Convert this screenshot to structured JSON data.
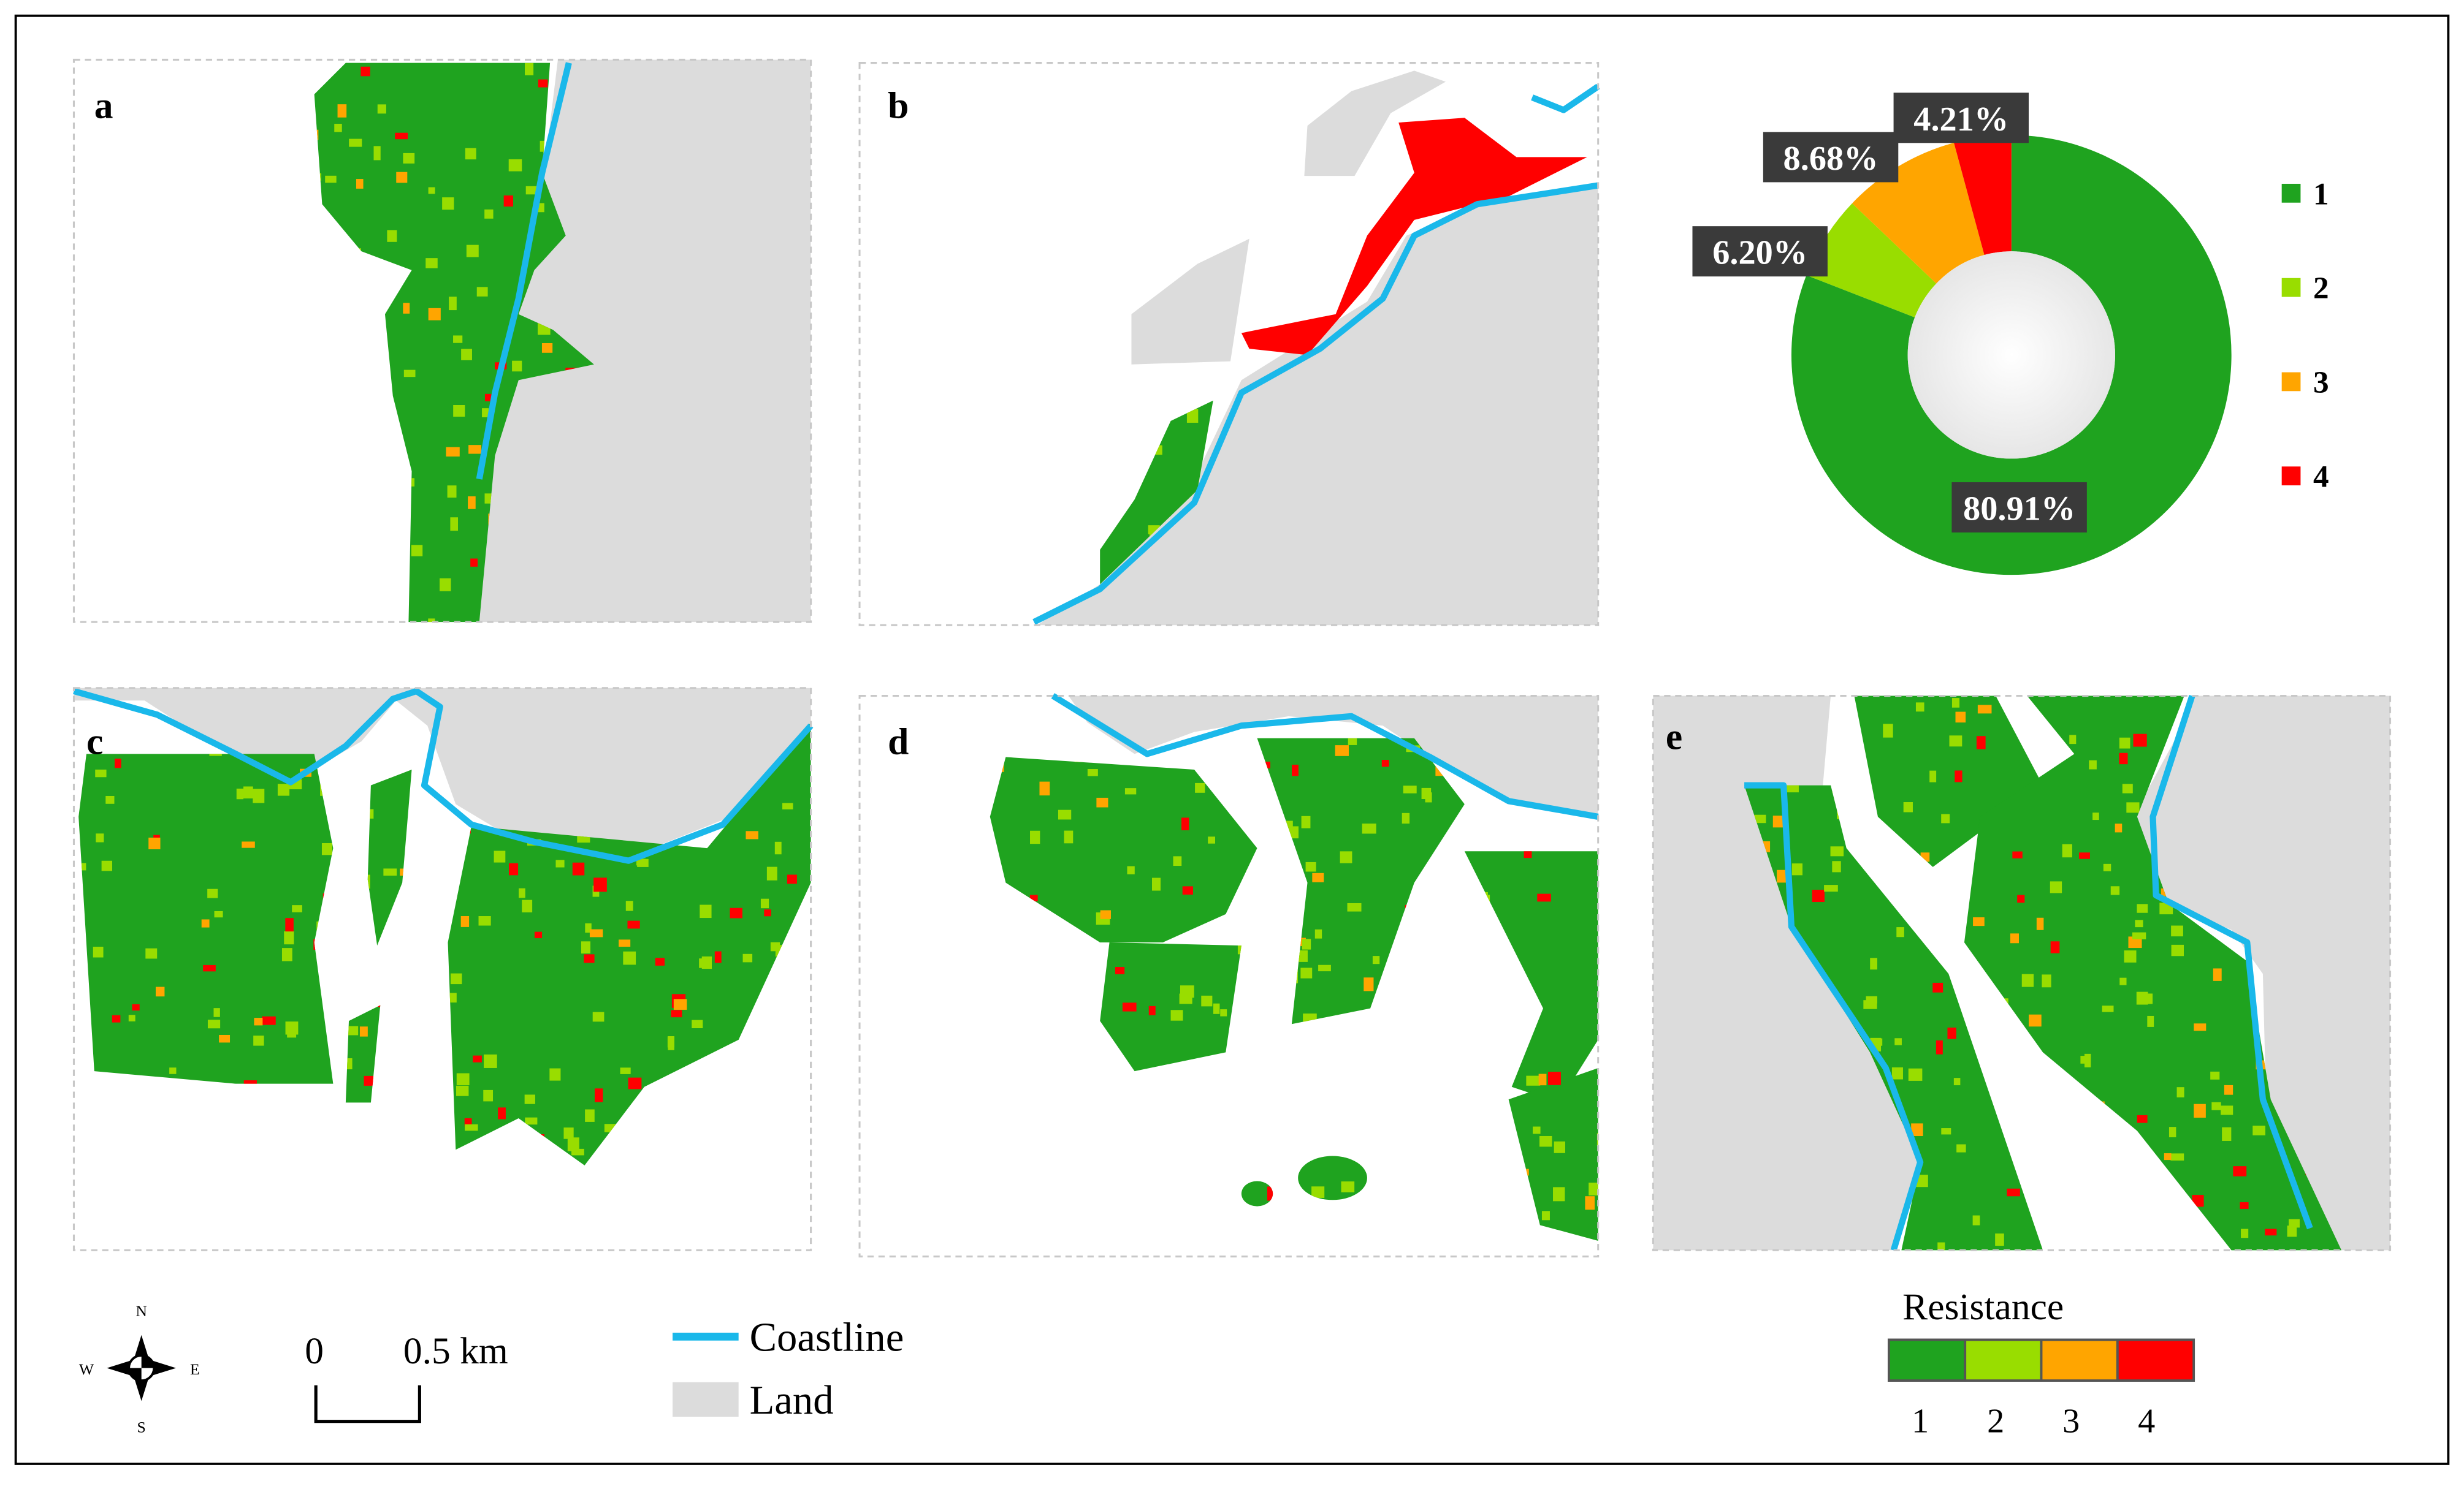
{
  "panels": [
    {
      "label": "a"
    },
    {
      "label": "b"
    },
    {
      "label": "c"
    },
    {
      "label": "d"
    },
    {
      "label": "e"
    }
  ],
  "chart_data": {
    "type": "pie",
    "donut": true,
    "categories": [
      "1",
      "2",
      "3",
      "4"
    ],
    "values": [
      80.91,
      6.2,
      8.68,
      4.21
    ],
    "value_labels": [
      "80.91%",
      "6.20%",
      "8.68%",
      "4.21%"
    ],
    "colors": [
      "#1fa31f",
      "#99dd00",
      "#ffa500",
      "#ff0000"
    ]
  },
  "legend": {
    "coastline": "Coastline",
    "land": "Land",
    "resistance_title": "Resistance",
    "resistance_classes": [
      "1",
      "2",
      "3",
      "4"
    ]
  },
  "scale_bar": {
    "labels": [
      "0",
      "0.5 km"
    ]
  },
  "compass": {
    "north": "N",
    "south": "S",
    "east": "E",
    "west": "W"
  }
}
